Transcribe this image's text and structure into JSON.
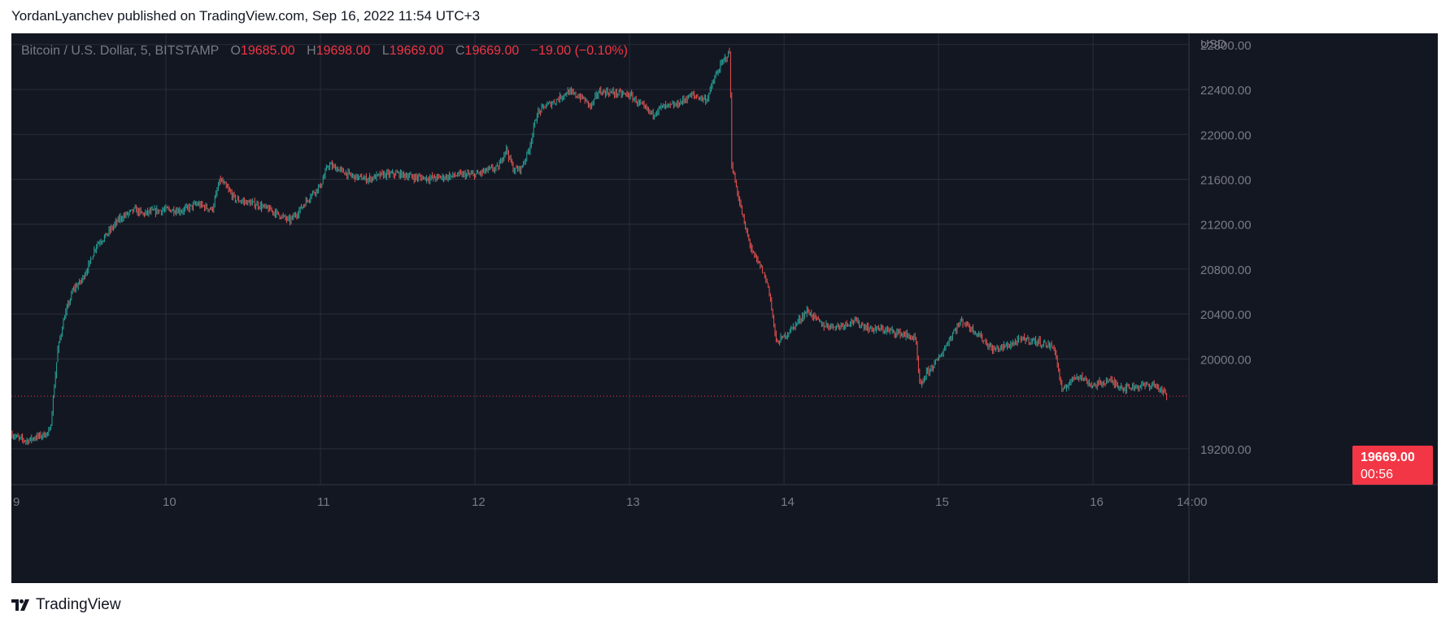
{
  "header": {
    "published_line": "YordanLyanchev published on TradingView.com, Sep 16, 2022 11:54 UTC+3"
  },
  "legend": {
    "symbol": "Bitcoin / U.S. Dollar, 5, BITSTAMP",
    "o_key": "O",
    "o_val": "19685.00",
    "h_key": "H",
    "h_val": "19698.00",
    "l_key": "L",
    "l_val": "19669.00",
    "c_key": "C",
    "c_val": "19669.00",
    "change": "−19.00 (−0.10%)"
  },
  "price_label": {
    "value": "19669.00",
    "countdown": "00:56"
  },
  "footer": {
    "brand": "TradingView",
    "logo_icon": "tradingview-logo-icon"
  },
  "colors": {
    "background": "#131722",
    "grid": "#2a2e39",
    "up": "#26a69a",
    "down": "#ef5350",
    "accent_red": "#f23645",
    "axis_text": "#787b86"
  },
  "chart_data": {
    "type": "line",
    "title": "Bitcoin / U.S. Dollar, 5, BITSTAMP",
    "ylabel": "USD",
    "xlabel": "",
    "x_ticks": [
      "9",
      "10",
      "11",
      "12",
      "13",
      "14",
      "15",
      "16",
      "14:00"
    ],
    "y_ticks": [
      "22800.00",
      "22400.00",
      "22000.00",
      "21600.00",
      "21200.00",
      "20800.00",
      "20400.00",
      "20000.00",
      "19200.00"
    ],
    "ylim": [
      18880,
      22900
    ],
    "xlim": [
      9.0,
      16.62
    ],
    "grid": true,
    "last_price": 19669,
    "series": [
      {
        "x": [
          9.0,
          9.05,
          9.1,
          9.15,
          9.2,
          9.25,
          9.3,
          9.34,
          9.4,
          9.45,
          9.5,
          9.55,
          9.6,
          9.7,
          9.8,
          9.85,
          9.9,
          10.0,
          10.1,
          10.2,
          10.3,
          10.35,
          10.45,
          10.6,
          10.7,
          10.8,
          10.85,
          10.95,
          11.0,
          11.05,
          11.1,
          11.2,
          11.3,
          11.4,
          11.5,
          11.6,
          11.7,
          11.8,
          11.9,
          12.0,
          12.1,
          12.15,
          12.2,
          12.25,
          12.3,
          12.35,
          12.4,
          12.45,
          12.5,
          12.6,
          12.7,
          12.75,
          12.8,
          12.9,
          13.0,
          13.1,
          13.15,
          13.2,
          13.3,
          13.4,
          13.5,
          13.55,
          13.6,
          13.65,
          13.66,
          13.68,
          13.7,
          13.75,
          13.8,
          13.85,
          13.9,
          13.95,
          14.0,
          14.05,
          14.15,
          14.25,
          14.35,
          14.45,
          14.55,
          14.65,
          14.75,
          14.85,
          14.88,
          14.92,
          15.0,
          15.1,
          15.15,
          15.25,
          15.35,
          15.45,
          15.55,
          15.65,
          15.75,
          15.8,
          15.85,
          15.9,
          16.0,
          16.1,
          16.2,
          16.3,
          16.4,
          16.48
        ],
        "values": [
          19330,
          19290,
          19270,
          19300,
          19320,
          19350,
          20080,
          20360,
          20620,
          20690,
          20830,
          21020,
          21080,
          21250,
          21330,
          21290,
          21310,
          21330,
          21320,
          21380,
          21330,
          21600,
          21420,
          21370,
          21310,
          21230,
          21300,
          21480,
          21540,
          21730,
          21700,
          21630,
          21600,
          21640,
          21650,
          21620,
          21610,
          21620,
          21640,
          21640,
          21690,
          21700,
          21880,
          21680,
          21700,
          21870,
          22180,
          22250,
          22280,
          22380,
          22320,
          22250,
          22380,
          22370,
          22350,
          22230,
          22180,
          22240,
          22260,
          22350,
          22310,
          22500,
          22640,
          22740,
          21750,
          21600,
          21470,
          21160,
          20930,
          20820,
          20640,
          20140,
          20200,
          20270,
          20430,
          20300,
          20290,
          20340,
          20270,
          20260,
          20230,
          20180,
          19740,
          19870,
          20000,
          20250,
          20340,
          20230,
          20080,
          20120,
          20180,
          20150,
          20100,
          19700,
          19800,
          19860,
          19760,
          19810,
          19740,
          19760,
          19770,
          19669
        ]
      }
    ]
  }
}
